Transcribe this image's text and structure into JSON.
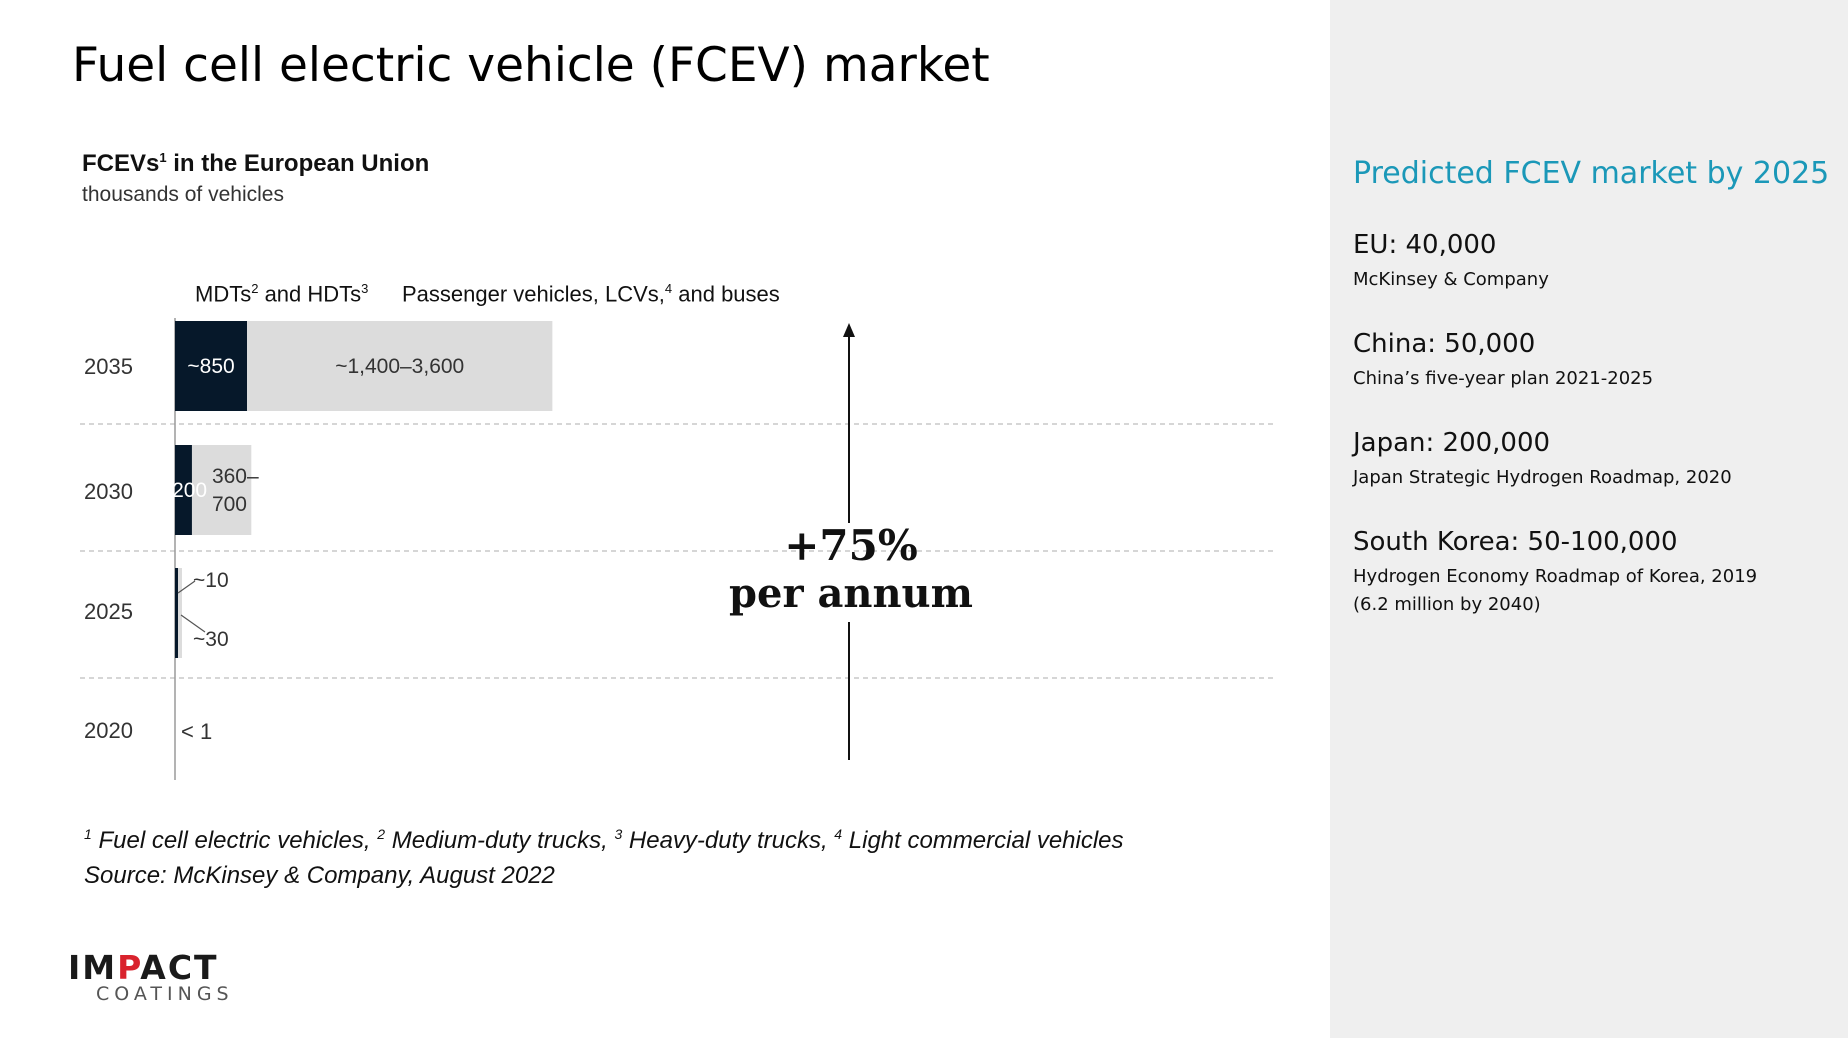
{
  "slide": {
    "title": "Fuel cell electric vehicle (FCEV) market"
  },
  "chart_data": {
    "type": "bar",
    "orientation": "horizontal",
    "stacked": true,
    "title": "FCEVs",
    "title_sup": "1",
    "title_rest": " in the European Union",
    "subtitle": "thousands of vehicles",
    "categories": [
      "2035",
      "2030",
      "2025",
      "2020"
    ],
    "series": [
      {
        "name_parts": [
          "MDTs",
          "2",
          " and HDTs",
          "3"
        ],
        "color": "#06182a",
        "values": [
          850,
          200,
          10,
          0
        ],
        "labels": [
          "~850",
          "~200",
          "~10",
          ""
        ]
      },
      {
        "name_parts": [
          "Passenger vehicles, LCVs,",
          "4",
          " and buses"
        ],
        "color": "#dcdcdc",
        "values": [
          3600,
          700,
          30,
          1
        ],
        "range_low": [
          1400,
          360,
          null,
          null
        ],
        "labels": [
          "~1,400–3,600",
          "360–\n700",
          "~30",
          "< 1"
        ]
      }
    ],
    "annotation": {
      "line1": "+75%",
      "line2": "per annum"
    },
    "grid": "dashed separators between rows",
    "legend": "top"
  },
  "footnote": {
    "n1": "1",
    "t1": " Fuel cell electric vehicles, ",
    "n2": "2",
    "t2": " Medium-duty trucks, ",
    "n3": "3",
    "t3": " Heavy-duty trucks, ",
    "n4": "4",
    "t4": " Light commercial vehicles",
    "source": "Source: McKinsey & Company, August 2022"
  },
  "logo": {
    "main_a": "IM",
    "main_b": "P",
    "main_c": "ACT",
    "sub": "COATINGS"
  },
  "colors": {
    "accent": "#1b98b8",
    "dark_bar": "#06182a",
    "light_bar": "#dcdcdc",
    "panel": "#efefef"
  },
  "sidebar": {
    "title": "Predicted FCEV market by 2025",
    "entries": [
      {
        "head": "EU: 40,000",
        "src": "McKinsey & Company"
      },
      {
        "head": "China: 50,000",
        "src": "China’s five-year plan 2021-2025"
      },
      {
        "head": "Japan: 200,000",
        "src": "Japan Strategic Hydrogen Roadmap, 2020"
      },
      {
        "head": "South Korea: 50-100,000",
        "src": "Hydrogen Economy Roadmap of Korea, 2019",
        "src2": "(6.2 million by 2040)"
      }
    ]
  }
}
